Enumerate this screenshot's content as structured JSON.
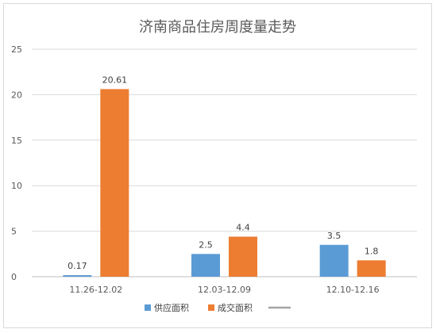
{
  "chart_data": {
    "type": "bar",
    "title": "济南商品住房周度量走势",
    "xlabel": "",
    "ylabel": "",
    "categories": [
      "11.26-12.02",
      "12.03-12.09",
      "12.10-12.16"
    ],
    "series": [
      {
        "name": "供应面积",
        "color": "#5b9bd5",
        "values": [
          0.17,
          2.5,
          3.5
        ],
        "labels": [
          "0.17",
          "2.5",
          "3.5"
        ]
      },
      {
        "name": "成交面积",
        "color": "#ed7d31",
        "values": [
          20.61,
          4.4,
          1.8
        ],
        "labels": [
          "20.61",
          "4.4",
          "1.8"
        ]
      }
    ],
    "legend_extra": {
      "name": "",
      "color": "#a5a5a5",
      "style": "line"
    },
    "ylim": [
      0,
      25
    ],
    "yticks": [
      0,
      5,
      10,
      15,
      20,
      25
    ],
    "grid": true,
    "legend_position": "bottom"
  }
}
